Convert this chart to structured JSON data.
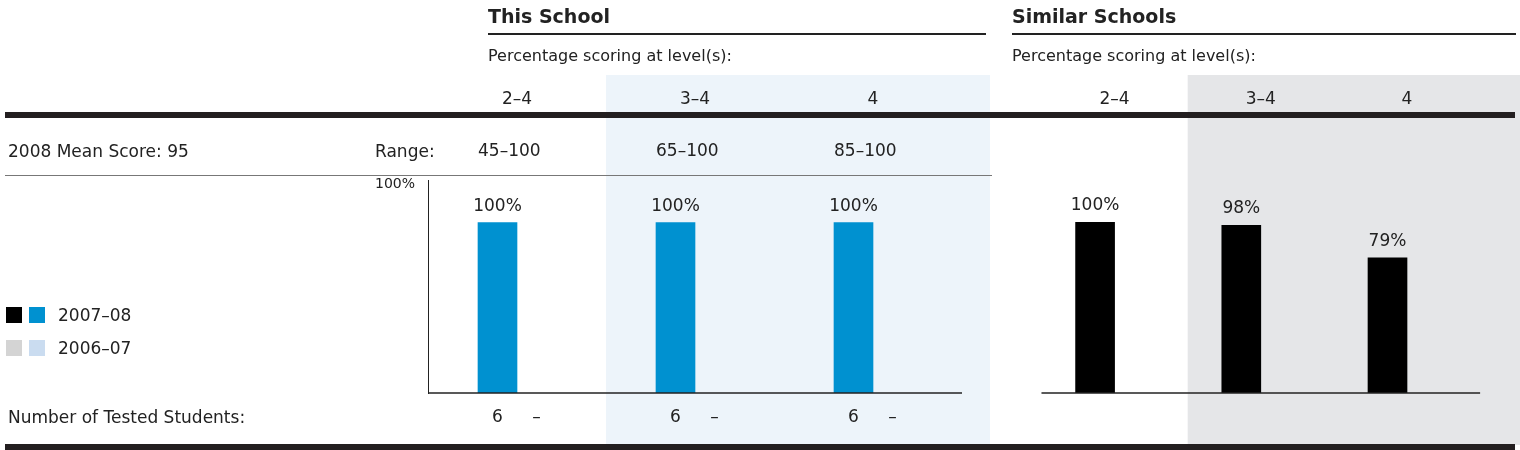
{
  "chart_data": [
    {
      "type": "bar",
      "title": "This School",
      "subtitle": "Percentage scoring at level(s):",
      "categories": [
        "2–4",
        "3–4",
        "4"
      ],
      "series": [
        {
          "name": "2007–08",
          "color": "#0091d0",
          "values": [
            100,
            100,
            100
          ],
          "value_labels": [
            "100%",
            "100%",
            "100%"
          ]
        },
        {
          "name": "2006–07",
          "color": "#cadcf0",
          "values": [
            null,
            null,
            null
          ]
        }
      ],
      "ylim": [
        0,
        125
      ],
      "legend": "left",
      "bands": [
        {
          "axis": "x",
          "from": "3–4",
          "to": "4",
          "color": "#edf4fa"
        }
      ],
      "annotations": [
        "2008 Mean Score: 95",
        "Range:",
        "Number of Tested Students:",
        "100%",
        "45–100",
        "6",
        "–",
        "65–100",
        "6",
        "–",
        "85–100",
        "6",
        "–"
      ]
    },
    {
      "type": "bar",
      "title": "Similar Schools",
      "subtitle": "Percentage scoring at level(s):",
      "categories": [
        "2–4",
        "3–4",
        "4"
      ],
      "series": [
        {
          "color": "#000000",
          "values": [
            100,
            98,
            79
          ],
          "value_labels": [
            "100%",
            "98%",
            "79%"
          ]
        },
        {
          "color": "#d4d4d4",
          "values": [
            null,
            null,
            null
          ]
        }
      ],
      "ylim": [
        0,
        100
      ],
      "tick_labels": "x",
      "bands": [
        {
          "axis": "x",
          "from": "3–4",
          "to": "4",
          "color": "#e5e6e8"
        }
      ]
    }
  ]
}
